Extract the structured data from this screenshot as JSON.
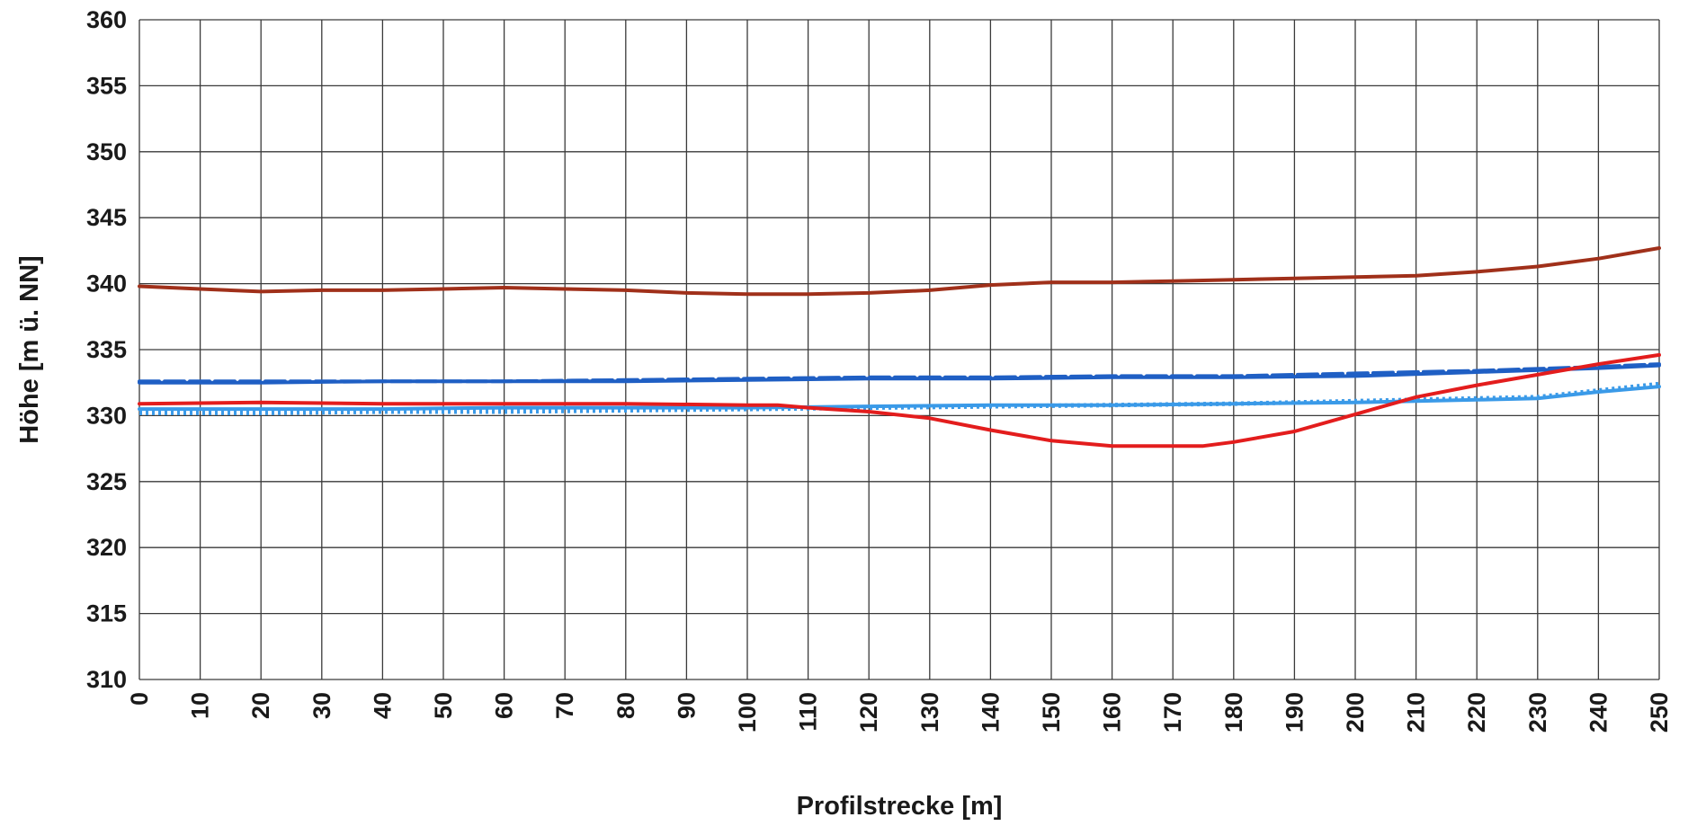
{
  "chart_data": {
    "type": "line",
    "title": "",
    "xlabel": "Profilstrecke [m]",
    "ylabel": "Höhe [m ü. NN]",
    "xlim": [
      0,
      250
    ],
    "ylim": [
      310,
      360
    ],
    "xticks": [
      0,
      10,
      20,
      30,
      40,
      50,
      60,
      70,
      80,
      90,
      100,
      110,
      120,
      130,
      140,
      150,
      160,
      170,
      180,
      190,
      200,
      210,
      220,
      230,
      240,
      250
    ],
    "yticks": [
      310,
      315,
      320,
      325,
      330,
      335,
      340,
      345,
      350,
      355,
      360
    ],
    "grid": true,
    "legend": "none",
    "series": [
      {
        "color": "#a0301a",
        "style": "solid",
        "points": [
          [
            0,
            339.8
          ],
          [
            10,
            339.6
          ],
          [
            20,
            339.4
          ],
          [
            30,
            339.5
          ],
          [
            40,
            339.5
          ],
          [
            50,
            339.6
          ],
          [
            60,
            339.7
          ],
          [
            70,
            339.6
          ],
          [
            80,
            339.5
          ],
          [
            90,
            339.3
          ],
          [
            100,
            339.2
          ],
          [
            110,
            339.2
          ],
          [
            120,
            339.3
          ],
          [
            130,
            339.5
          ],
          [
            140,
            339.9
          ],
          [
            150,
            340.1
          ],
          [
            160,
            340.1
          ],
          [
            170,
            340.2
          ],
          [
            180,
            340.3
          ],
          [
            190,
            340.4
          ],
          [
            200,
            340.5
          ],
          [
            210,
            340.6
          ],
          [
            220,
            340.9
          ],
          [
            230,
            341.3
          ],
          [
            240,
            341.9
          ],
          [
            250,
            342.7
          ]
        ]
      },
      {
        "color": "#1f5fc4",
        "style": "solid",
        "points": [
          [
            0,
            332.5
          ],
          [
            20,
            332.5
          ],
          [
            40,
            332.6
          ],
          [
            60,
            332.6
          ],
          [
            80,
            332.6
          ],
          [
            100,
            332.7
          ],
          [
            120,
            332.8
          ],
          [
            140,
            332.8
          ],
          [
            160,
            332.9
          ],
          [
            180,
            332.9
          ],
          [
            200,
            333.0
          ],
          [
            220,
            333.3
          ],
          [
            240,
            333.6
          ],
          [
            250,
            333.8
          ]
        ]
      },
      {
        "color": "#1f5fc4",
        "style": "dashed",
        "points": [
          [
            0,
            332.6
          ],
          [
            20,
            332.6
          ],
          [
            40,
            332.6
          ],
          [
            60,
            332.6
          ],
          [
            80,
            332.7
          ],
          [
            100,
            332.8
          ],
          [
            120,
            332.9
          ],
          [
            140,
            332.9
          ],
          [
            160,
            333.0
          ],
          [
            180,
            333.0
          ],
          [
            200,
            333.2
          ],
          [
            220,
            333.4
          ],
          [
            240,
            333.7
          ],
          [
            250,
            333.9
          ]
        ]
      },
      {
        "color": "#3a9ae8",
        "style": "solid",
        "points": [
          [
            0,
            330.5
          ],
          [
            20,
            330.5
          ],
          [
            40,
            330.5
          ],
          [
            60,
            330.6
          ],
          [
            80,
            330.6
          ],
          [
            100,
            330.6
          ],
          [
            120,
            330.7
          ],
          [
            140,
            330.8
          ],
          [
            160,
            330.8
          ],
          [
            180,
            330.9
          ],
          [
            200,
            331.0
          ],
          [
            220,
            331.2
          ],
          [
            230,
            331.3
          ],
          [
            240,
            331.8
          ],
          [
            250,
            332.2
          ]
        ]
      },
      {
        "color": "#3a9ae8",
        "style": "dotted",
        "points": [
          [
            0,
            330.2
          ],
          [
            20,
            330.2
          ],
          [
            40,
            330.3
          ],
          [
            60,
            330.3
          ],
          [
            80,
            330.4
          ],
          [
            100,
            330.5
          ],
          [
            120,
            330.6
          ],
          [
            140,
            330.7
          ],
          [
            160,
            330.8
          ],
          [
            180,
            330.9
          ],
          [
            200,
            331.1
          ],
          [
            220,
            331.3
          ],
          [
            230,
            331.4
          ],
          [
            240,
            331.9
          ],
          [
            250,
            332.4
          ]
        ]
      },
      {
        "color": "#e31d1d",
        "style": "solid",
        "points": [
          [
            0,
            330.9
          ],
          [
            20,
            331.0
          ],
          [
            40,
            330.9
          ],
          [
            60,
            330.9
          ],
          [
            80,
            330.9
          ],
          [
            100,
            330.8
          ],
          [
            105,
            330.8
          ],
          [
            110,
            330.6
          ],
          [
            120,
            330.3
          ],
          [
            130,
            329.8
          ],
          [
            140,
            328.9
          ],
          [
            150,
            328.1
          ],
          [
            160,
            327.7
          ],
          [
            170,
            327.7
          ],
          [
            175,
            327.7
          ],
          [
            180,
            328.0
          ],
          [
            190,
            328.8
          ],
          [
            200,
            330.1
          ],
          [
            210,
            331.4
          ],
          [
            220,
            332.3
          ],
          [
            230,
            333.1
          ],
          [
            240,
            333.9
          ],
          [
            250,
            334.6
          ]
        ]
      }
    ]
  }
}
